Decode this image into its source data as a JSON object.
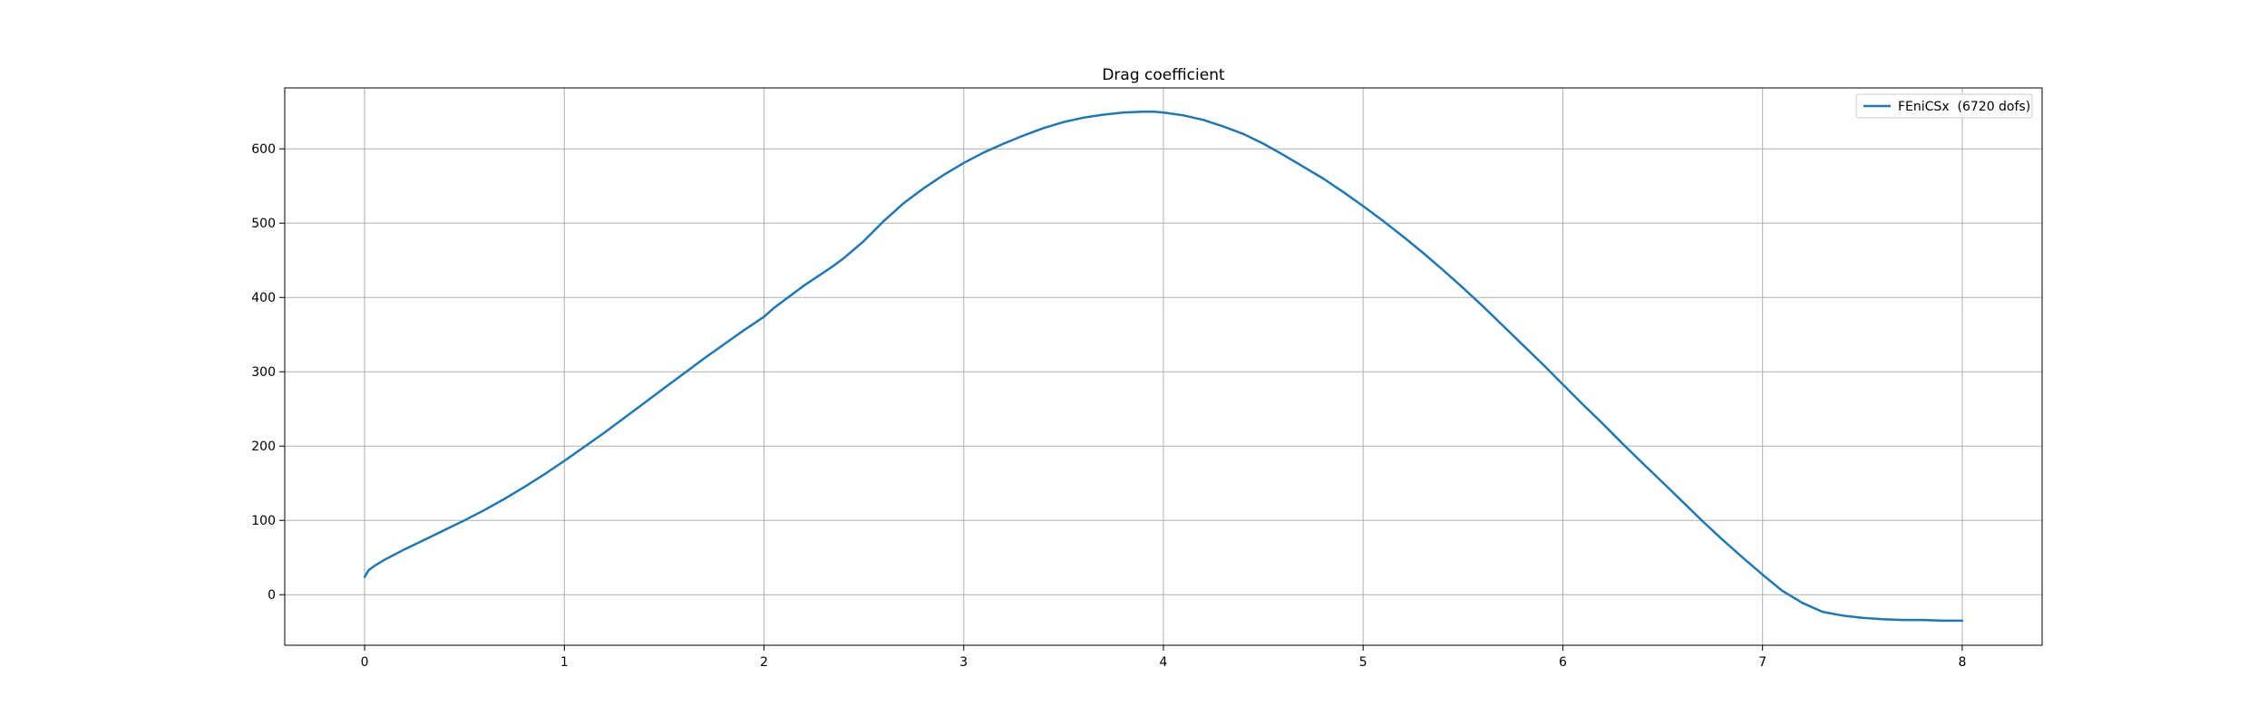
{
  "chart_data": {
    "type": "line",
    "title": "Drag coefficient",
    "xlabel": "",
    "ylabel": "",
    "xlim": [
      -0.4,
      8.4
    ],
    "ylim": [
      -68,
      682
    ],
    "x_ticks": [
      0,
      1,
      2,
      3,
      4,
      5,
      6,
      7,
      8
    ],
    "y_ticks": [
      0,
      100,
      200,
      300,
      400,
      500,
      600
    ],
    "grid": true,
    "legend_position": "top-right",
    "colors": {
      "series": "#1f77b4",
      "grid": "#b0b0b0",
      "axes": "#000000"
    },
    "series": [
      {
        "name": "FEniCSx  (6720 dofs)",
        "x": [
          0,
          0.02,
          0.05,
          0.1,
          0.2,
          0.3,
          0.4,
          0.5,
          0.6,
          0.7,
          0.8,
          0.9,
          1.0,
          1.1,
          1.2,
          1.3,
          1.4,
          1.5,
          1.6,
          1.7,
          1.8,
          1.9,
          2.0,
          2.05,
          2.1,
          2.2,
          2.3,
          2.35,
          2.4,
          2.5,
          2.6,
          2.7,
          2.8,
          2.9,
          3.0,
          3.1,
          3.2,
          3.3,
          3.4,
          3.5,
          3.6,
          3.7,
          3.8,
          3.9,
          3.95,
          4.0,
          4.1,
          4.2,
          4.3,
          4.4,
          4.5,
          4.6,
          4.7,
          4.8,
          4.9,
          5.0,
          5.1,
          5.2,
          5.3,
          5.4,
          5.5,
          5.6,
          5.7,
          5.8,
          5.9,
          6.0,
          6.1,
          6.2,
          6.3,
          6.4,
          6.5,
          6.6,
          6.7,
          6.8,
          6.9,
          7.0,
          7.1,
          7.2,
          7.3,
          7.4,
          7.5,
          7.6,
          7.7,
          7.8,
          7.9,
          8.0
        ],
        "y": [
          24,
          33,
          39,
          47,
          61,
          74,
          87,
          100,
          114,
          129,
          145,
          162,
          180,
          199,
          218,
          238,
          258,
          278,
          298,
          318,
          337,
          356,
          374,
          386,
          396,
          416,
          434,
          443,
          453,
          476,
          503,
          527,
          547,
          565,
          581,
          595,
          607,
          618,
          628,
          636,
          642,
          646,
          649,
          650,
          650,
          649,
          645,
          639,
          630,
          620,
          607,
          592,
          576,
          560,
          542,
          523,
          503,
          482,
          460,
          437,
          413,
          388,
          362,
          336,
          310,
          283,
          256,
          230,
          203,
          177,
          151,
          125,
          99,
          74,
          50,
          27,
          5,
          -11,
          -23,
          -28,
          -31,
          -33,
          -34,
          -34,
          -35,
          -35
        ]
      }
    ]
  }
}
